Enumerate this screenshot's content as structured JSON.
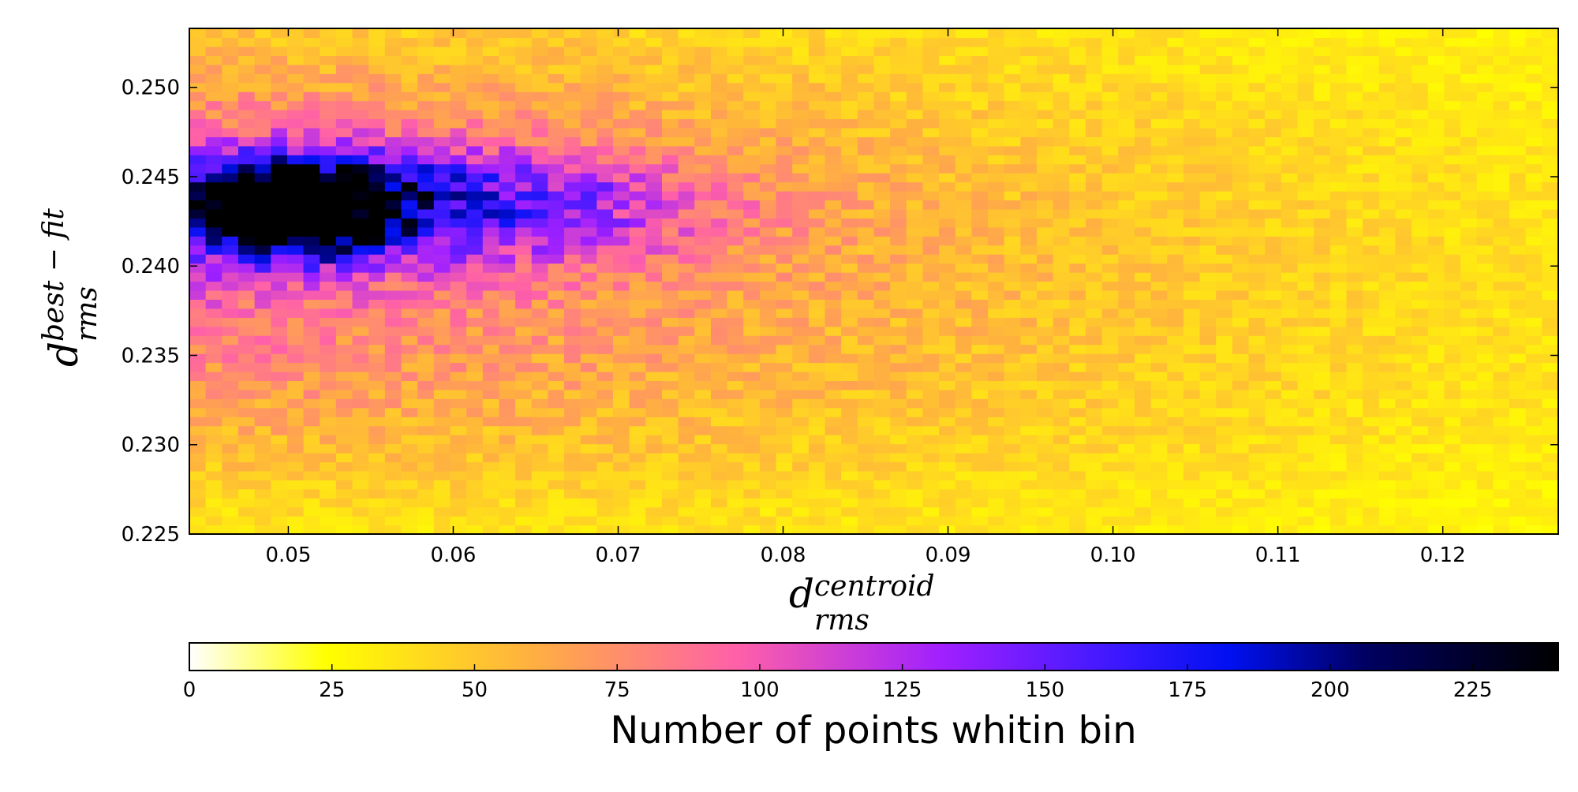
{
  "chart_data": {
    "type": "heatmap",
    "title": "",
    "x_range": [
      0.044,
      0.127
    ],
    "y_range": [
      0.225,
      0.2533
    ],
    "bins": {
      "nx": 84,
      "ny": 56
    },
    "xticks": [
      0.05,
      0.06,
      0.07,
      0.08,
      0.09,
      0.1,
      0.11,
      0.12
    ],
    "xtick_labels": [
      "0.05",
      "0.06",
      "0.07",
      "0.08",
      "0.09",
      "0.10",
      "0.11",
      "0.12"
    ],
    "yticks": [
      0.225,
      0.23,
      0.235,
      0.24,
      0.245,
      0.25
    ],
    "ytick_labels": [
      "0.225",
      "0.230",
      "0.235",
      "0.240",
      "0.245",
      "0.250"
    ],
    "xlabel": {
      "base": "d",
      "superscript": "centroid",
      "subscript": "rms"
    },
    "ylabel": {
      "base": "d",
      "superscript": "best − fit",
      "subscript": "rms"
    },
    "density_peak": {
      "x": 0.05,
      "y": 0.2435,
      "max_count": 240
    },
    "colorbar": {
      "label": "Number of points whitin bin",
      "range": [
        0,
        240
      ],
      "ticks": [
        0,
        25,
        50,
        75,
        100,
        125,
        150,
        175,
        200,
        225
      ],
      "tick_labels": [
        "0",
        "25",
        "50",
        "75",
        "100",
        "125",
        "150",
        "175",
        "200",
        "225"
      ],
      "colormap": "gnuplot2_r",
      "colormap_stops": [
        {
          "t": 0.0,
          "color": "#ffffff"
        },
        {
          "t": 0.1,
          "color": "#ffff00"
        },
        {
          "t": 0.25,
          "color": "#ffb040"
        },
        {
          "t": 0.4,
          "color": "#ff60a8"
        },
        {
          "t": 0.55,
          "color": "#a020ff"
        },
        {
          "t": 0.68,
          "color": "#3a18ff"
        },
        {
          "t": 0.76,
          "color": "#0010f0"
        },
        {
          "t": 0.86,
          "color": "#000060"
        },
        {
          "t": 1.0,
          "color": "#000000"
        }
      ]
    }
  }
}
